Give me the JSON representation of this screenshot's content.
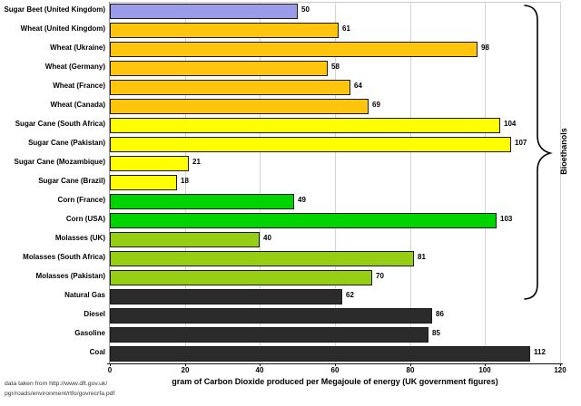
{
  "figure": {
    "x_axis_title": "gram of Carbon Dioxide produced per Megajoule of energy (UK government figures)",
    "footer_line1": "data taken from http://www.dft.gov.uk/",
    "footer_line2": "pgr/roads/environment/rtfo/govrecrfa.pdf",
    "brace_label": "Bioethanols"
  },
  "chart_data": {
    "type": "bar",
    "orientation": "horizontal",
    "title": "",
    "xlabel": "gram of Carbon Dioxide produced per Megajoule of energy (UK government figures)",
    "ylabel": "",
    "xlim": [
      0,
      120
    ],
    "x_ticks": [
      0,
      20,
      40,
      60,
      80,
      100,
      120
    ],
    "grid": true,
    "legend": "none",
    "categories": [
      "Sugar Beet (United Kingdom)",
      "Wheat (United Kingdom)",
      "Wheat (Ukraine)",
      "Wheat (Germany)",
      "Wheat (France)",
      "Wheat (Canada)",
      "Sugar Cane (South Africa)",
      "Sugar Cane (Pakistan)",
      "Sugar Cane (Mozambique)",
      "Sugar Cane (Brazil)",
      "Corn (France)",
      "Corn (USA)",
      "Molasses (UK)",
      "Molasses (South Africa)",
      "Molasses (Pakistan)",
      "Natural Gas",
      "Diesel",
      "Gasoline",
      "Coal"
    ],
    "values": [
      50,
      61,
      98,
      58,
      64,
      69,
      104,
      107,
      21,
      18,
      49,
      103,
      40,
      81,
      70,
      62,
      86,
      85,
      112
    ],
    "groups": [
      "sugar_beet",
      "wheat",
      "wheat",
      "wheat",
      "wheat",
      "wheat",
      "sugar_cane",
      "sugar_cane",
      "sugar_cane",
      "sugar_cane",
      "corn",
      "corn",
      "molasses",
      "molasses",
      "molasses",
      "fossil",
      "fossil",
      "fossil",
      "fossil"
    ],
    "colors": {
      "sugar_beet": "#9b9be8",
      "wheat": "#ffc40c",
      "sugar_cane": "#ffff00",
      "corn": "#00d400",
      "molasses": "#96ce14",
      "fossil": "#2b2b2b"
    },
    "bar_border_color": "#1a1a1a",
    "annotation": {
      "label": "Bioethanols",
      "covers_categories_from": "Sugar Beet (United Kingdom)",
      "covers_categories_to": "Molasses (Pakistan)",
      "bar_count_covered": 15
    }
  }
}
